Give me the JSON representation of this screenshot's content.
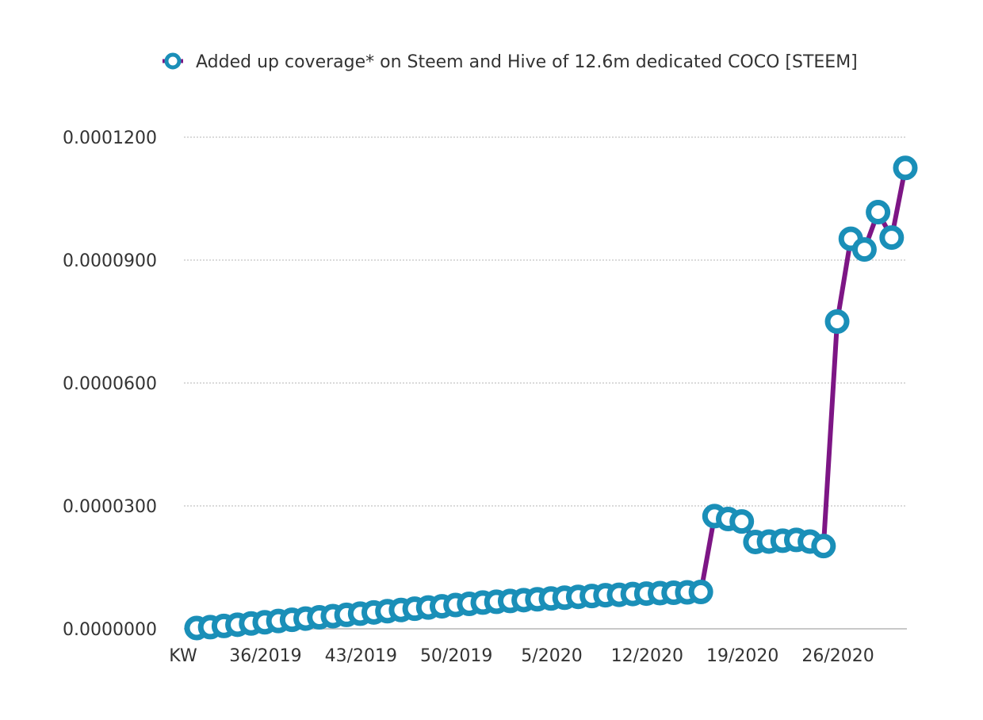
{
  "chart_data": {
    "type": "line",
    "legend": {
      "label": "Added up coverage* on Steem and Hive of 12.6m dedicated COCO [STEEM]",
      "position": "top-right"
    },
    "grid": "horizontal dotted",
    "x_first_label": "KW",
    "x_tick_labels": [
      "36/2019",
      "43/2019",
      "50/2019",
      "5/2020",
      "12/2020",
      "19/2020",
      "26/2020"
    ],
    "y_tick_labels": [
      "0.0000000",
      "0.0000300",
      "0.0000600",
      "0.0000900",
      "0.0001200"
    ],
    "ylim": [
      0,
      0.00012
    ],
    "line_color": "#7d1685",
    "marker_color": "#1a8fb8",
    "series": [
      {
        "name": "Added up coverage* on Steem and Hive of 12.6m dedicated COCO [STEEM]",
        "x": [
          "31/2019",
          "32/2019",
          "33/2019",
          "34/2019",
          "35/2019",
          "36/2019",
          "37/2019",
          "38/2019",
          "39/2019",
          "40/2019",
          "41/2019",
          "42/2019",
          "43/2019",
          "44/2019",
          "45/2019",
          "46/2019",
          "47/2019",
          "48/2019",
          "49/2019",
          "50/2019",
          "51/2019",
          "52/2019",
          "1/2020",
          "2/2020",
          "3/2020",
          "4/2020",
          "5/2020",
          "6/2020",
          "7/2020",
          "8/2020",
          "9/2020",
          "10/2020",
          "11/2020",
          "12/2020",
          "13/2020",
          "14/2020",
          "15/2020",
          "16/2020",
          "17/2020",
          "18/2020",
          "19/2020",
          "20/2020",
          "21/2020",
          "22/2020",
          "23/2020",
          "24/2020",
          "25/2020",
          "26/2020",
          "27/2020",
          "28/2020",
          "29/2020",
          "30/2020",
          "31/2020"
        ],
        "values": [
          2e-07,
          4e-07,
          7e-07,
          1e-06,
          1.3e-06,
          1.6e-06,
          1.9e-06,
          2.2e-06,
          2.5e-06,
          2.8e-06,
          3.1e-06,
          3.4e-06,
          3.7e-06,
          4e-06,
          4.3e-06,
          4.6e-06,
          4.9e-06,
          5.2e-06,
          5.5e-06,
          5.8e-06,
          6.1e-06,
          6.4e-06,
          6.6e-06,
          6.8e-06,
          7e-06,
          7.2e-06,
          7.4e-06,
          7.6e-06,
          7.8e-06,
          8e-06,
          8.2e-06,
          8.3e-06,
          8.5e-06,
          8.6e-06,
          8.7e-06,
          8.8e-06,
          8.9e-06,
          9e-06,
          2.75e-05,
          2.68e-05,
          2.62e-05,
          2.12e-05,
          2.13e-05,
          2.15e-05,
          2.17e-05,
          2.13e-05,
          2.02e-05,
          7.5e-05,
          9.52e-05,
          9.26e-05,
          0.0001017,
          9.55e-05,
          0.0001125
        ]
      }
    ]
  }
}
